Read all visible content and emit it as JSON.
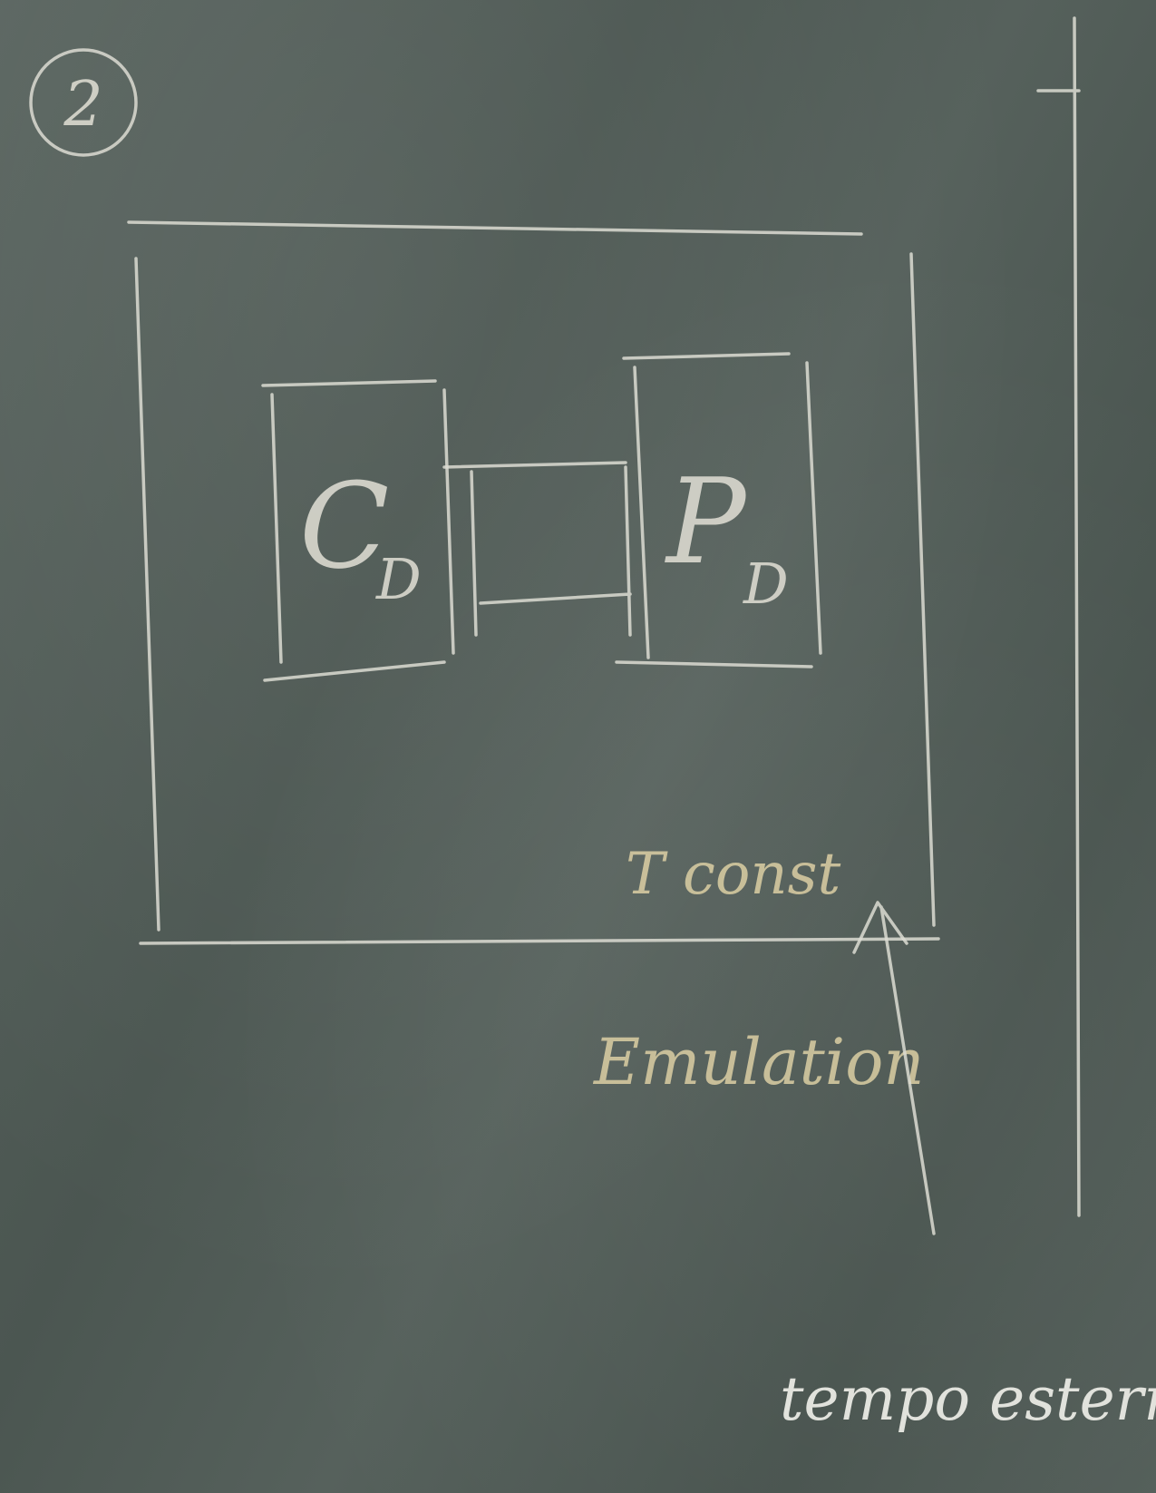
{
  "step_number": "2",
  "left_box": {
    "letter": "C",
    "subscript": "D"
  },
  "right_box": {
    "letter": "P",
    "subscript": "D"
  },
  "inner_label": "T const",
  "boundary_label": "Emulation",
  "arrow_label": "tempo esterno",
  "colors": {
    "board": "#4f5a55",
    "chalk": "#dcdcd2",
    "chalk_yellow": "#dccfa8"
  }
}
